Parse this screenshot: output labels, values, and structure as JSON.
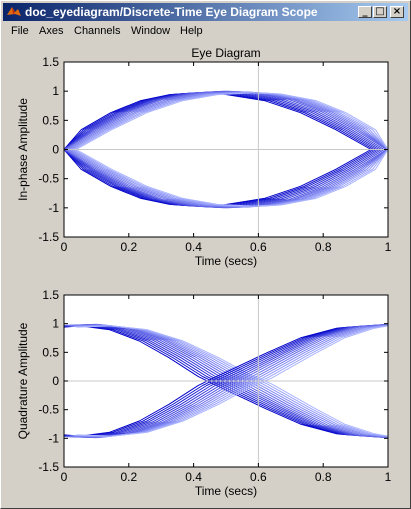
{
  "window": {
    "title": "doc_eyediagram/Discrete-Time Eye Diagram Scope"
  },
  "menu": [
    "File",
    "Axes",
    "Channels",
    "Window",
    "Help"
  ],
  "icons": {
    "app": "matlab-logo-icon",
    "minimize": "minimize-icon",
    "maximize": "maximize-icon",
    "close": "close-icon"
  },
  "colors": {
    "trace_dark": "#0000c8",
    "trace_light": "#aab4ff",
    "titlebar": "#0a246a"
  },
  "chart_data": [
    {
      "type": "line",
      "title": "Eye Diagram",
      "xlabel": "Time (secs)",
      "ylabel": "In-phase Amplitude",
      "xlim": [
        0,
        1
      ],
      "ylim": [
        -1.5,
        1.5
      ],
      "xticks": [
        "0",
        "0.2",
        "0.4",
        "0.6",
        "0.8",
        "1"
      ],
      "yticks": [
        "1.5",
        "1",
        "0.5",
        "0",
        "-0.5",
        "-1",
        "-1.5"
      ],
      "grid": false,
      "eye_center": 0.58,
      "trace_count": 14,
      "series": [
        {
          "x": [
            0,
            0.1,
            0.2,
            0.3,
            0.4,
            0.5,
            0.58,
            0.7,
            0.8,
            0.9,
            1.0
          ],
          "y": [
            0.0,
            0.35,
            0.65,
            0.86,
            0.97,
            1.0,
            0.98,
            0.86,
            0.65,
            0.35,
            0.0
          ]
        },
        {
          "x": [
            0,
            0.1,
            0.2,
            0.3,
            0.4,
            0.5,
            0.58,
            0.7,
            0.8,
            0.9,
            1.0
          ],
          "y": [
            0.0,
            -0.35,
            -0.65,
            -0.86,
            -0.97,
            -1.0,
            -0.98,
            -0.86,
            -0.65,
            -0.35,
            0.0
          ]
        }
      ]
    },
    {
      "type": "line",
      "title": "",
      "xlabel": "Time (secs)",
      "ylabel": "Quadrature Amplitude",
      "xlim": [
        0,
        1
      ],
      "ylim": [
        -1.5,
        1.5
      ],
      "xticks": [
        "0",
        "0.2",
        "0.4",
        "0.6",
        "0.8",
        "1"
      ],
      "yticks": [
        "1.5",
        "1",
        "0.5",
        "0",
        "-0.5",
        "-1",
        "-1.5"
      ],
      "grid": false,
      "eye_center": 0.55,
      "trace_count": 14,
      "series": [
        {
          "x": [
            0,
            0.1,
            0.2,
            0.3,
            0.4,
            0.5,
            0.55,
            0.7,
            0.8,
            0.9,
            1.0
          ],
          "y": [
            0.97,
            0.99,
            0.92,
            0.72,
            0.42,
            0.08,
            -0.05,
            -0.5,
            -0.78,
            -0.95,
            -0.99
          ]
        },
        {
          "x": [
            0,
            0.1,
            0.2,
            0.3,
            0.4,
            0.5,
            0.55,
            0.7,
            0.8,
            0.9,
            1.0
          ],
          "y": [
            -0.97,
            -0.99,
            -0.92,
            -0.72,
            -0.42,
            -0.08,
            0.05,
            0.5,
            0.78,
            0.95,
            0.99
          ]
        }
      ]
    }
  ]
}
